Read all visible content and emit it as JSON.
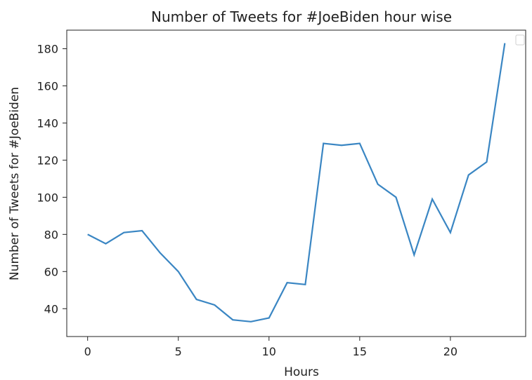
{
  "chart_data": {
    "type": "line",
    "title": "Number of Tweets for #JoeBiden hour wise",
    "xlabel": "Hours",
    "ylabel": "Number of Tweets for #JoeBiden",
    "xlim": [
      -1.15,
      24.15
    ],
    "ylim": [
      25,
      190
    ],
    "xticks": [
      0,
      5,
      10,
      15,
      20
    ],
    "yticks": [
      40,
      60,
      80,
      100,
      120,
      140,
      160,
      180
    ],
    "grid": false,
    "legend": {
      "visible": true,
      "placement": "top-right",
      "entries": []
    },
    "series": [
      {
        "color": "#3a86c3",
        "x": [
          0,
          1,
          2,
          3,
          4,
          5,
          6,
          7,
          8,
          9,
          10,
          11,
          12,
          13,
          14,
          15,
          16,
          17,
          18,
          19,
          20,
          21,
          22,
          23
        ],
        "y": [
          80,
          75,
          81,
          82,
          70,
          60,
          45,
          42,
          34,
          33,
          35,
          54,
          53,
          129,
          128,
          129,
          107,
          100,
          69,
          99,
          81,
          112,
          119,
          183
        ]
      }
    ]
  }
}
